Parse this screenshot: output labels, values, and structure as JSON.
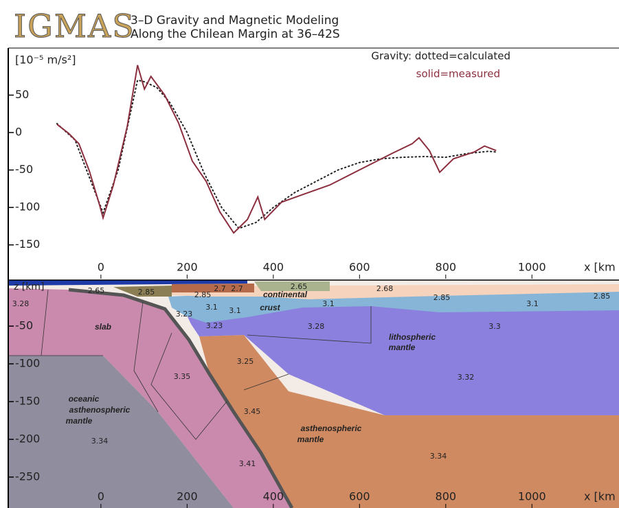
{
  "header": {
    "logo": "IGMAS",
    "title_lines": [
      "3–D Gravity and Magnetic Modeling",
      "Along the Chilean Margin at 36–42S"
    ]
  },
  "chart_data": [
    {
      "type": "line",
      "y_label": "[10⁻⁵ m/s²]",
      "x_label": "x [km",
      "xlim": [
        -215,
        1202
      ],
      "ylim": [
        -197,
        111
      ],
      "xticks": [
        0,
        200,
        400,
        600,
        800,
        1000
      ],
      "yticks": [
        50,
        0,
        -50,
        -100,
        -150
      ],
      "grid": false,
      "series": [
        {
          "name": "Gravity: dotted=calculated",
          "color": "#222222",
          "style": "dotted",
          "x": [
            -102,
            -60,
            -20,
            5,
            40,
            70,
            85,
            100,
            130,
            160,
            200,
            240,
            280,
            320,
            360,
            400,
            450,
            500,
            550,
            600,
            650,
            700,
            750,
            800,
            850,
            900,
            917
          ],
          "values": [
            12,
            -10,
            -70,
            -107,
            -50,
            30,
            70,
            68,
            60,
            40,
            0,
            -55,
            -100,
            -128,
            -120,
            -100,
            -80,
            -65,
            -50,
            -40,
            -35,
            -33,
            -32,
            -33,
            -28,
            -25,
            -26
          ]
        },
        {
          "name": "solid=measured",
          "color": "#8b2f3f",
          "style": "solid",
          "x": [
            -102,
            -75,
            -51,
            -27,
            -3,
            5,
            29,
            61,
            85,
            101,
            116,
            148,
            180,
            212,
            244,
            276,
            308,
            340,
            364,
            380,
            419,
            467,
            531,
            627,
            675,
            722,
            738,
            762,
            786,
            818,
            866,
            890,
            917
          ],
          "values": [
            11,
            -1,
            -15,
            -51,
            -97,
            -114,
            -70,
            8,
            90,
            58,
            75,
            50,
            13,
            -38,
            -65,
            -106,
            -134,
            -116,
            -86,
            -116,
            -93,
            -83,
            -70,
            -42,
            -28,
            -15,
            -7,
            -24,
            -53,
            -35,
            -26,
            -18,
            -24
          ]
        }
      ]
    },
    {
      "type": "section",
      "y_label": "z [km]",
      "x_label": "x [km",
      "xlim": [
        -215,
        1202
      ],
      "ylim": [
        -291,
        11
      ],
      "xticks": [
        0,
        200,
        400,
        600,
        800,
        1000
      ],
      "yticks": [
        -50,
        -100,
        -150,
        -200,
        -250
      ],
      "labels": [
        3.28,
        2.65,
        2.85,
        2.7,
        2.7,
        2.85,
        2.65,
        "continental",
        2.68,
        2.85,
        2.85,
        3.1,
        3.1,
        "crust",
        3.1,
        3.1,
        3.23,
        3.23,
        3.28,
        3.3,
        "slab",
        "lithospheric",
        "mantle",
        3.25,
        3.35,
        3.32,
        "oceanic",
        "asthenospheric",
        "mantle",
        3.34,
        3.45,
        "asthenospheric",
        "mantle",
        3.34,
        3.41
      ]
    }
  ]
}
